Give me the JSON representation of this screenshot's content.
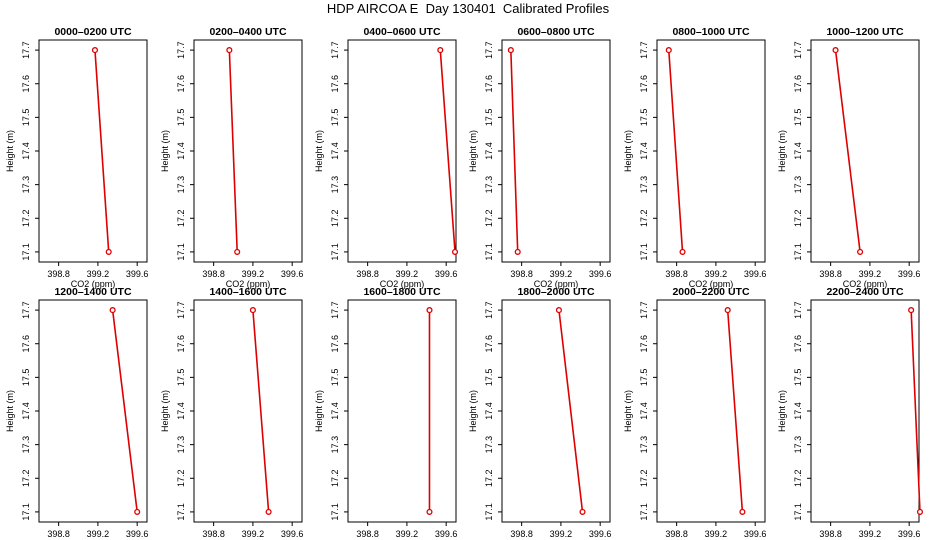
{
  "title": "HDP AIRCOA E  Day 130401  Calibrated Profiles",
  "colors": {
    "series": "#dd0000",
    "axis": "#000000",
    "text": "#000000"
  },
  "chart_data": [
    {
      "type": "line",
      "title": "0000–0200 UTC",
      "xlabel": "CO2 (ppm)",
      "ylabel": "Height (m)",
      "xlim": [
        398.6,
        399.7
      ],
      "ylim": [
        17.07,
        17.73
      ],
      "xticks": [
        "398.8",
        "399.2",
        "399.6"
      ],
      "yticks": [
        "17.1",
        "17.2",
        "17.3",
        "17.4",
        "17.5",
        "17.6",
        "17.7"
      ],
      "x": [
        399.17,
        399.31
      ],
      "y": [
        17.7,
        17.1
      ]
    },
    {
      "type": "line",
      "title": "0200–0400 UTC",
      "xlabel": "CO2 (ppm)",
      "ylabel": "Height (m)",
      "xlim": [
        398.6,
        399.7
      ],
      "ylim": [
        17.07,
        17.73
      ],
      "xticks": [
        "398.8",
        "399.2",
        "399.6"
      ],
      "yticks": [
        "17.1",
        "17.2",
        "17.3",
        "17.4",
        "17.5",
        "17.6",
        "17.7"
      ],
      "x": [
        398.96,
        399.04
      ],
      "y": [
        17.7,
        17.1
      ]
    },
    {
      "type": "line",
      "title": "0400–0600 UTC",
      "xlabel": "CO2 (ppm)",
      "ylabel": "Height (m)",
      "xlim": [
        398.6,
        399.7
      ],
      "ylim": [
        17.07,
        17.73
      ],
      "xticks": [
        "398.8",
        "399.2",
        "399.6"
      ],
      "yticks": [
        "17.1",
        "17.2",
        "17.3",
        "17.4",
        "17.5",
        "17.6",
        "17.7"
      ],
      "x": [
        399.54,
        399.69
      ],
      "y": [
        17.7,
        17.1
      ]
    },
    {
      "type": "line",
      "title": "0600–0800 UTC",
      "xlabel": "CO2 (ppm)",
      "ylabel": "Height (m)",
      "xlim": [
        398.6,
        399.7
      ],
      "ylim": [
        17.07,
        17.73
      ],
      "xticks": [
        "398.8",
        "399.2",
        "399.6"
      ],
      "yticks": [
        "17.1",
        "17.2",
        "17.3",
        "17.4",
        "17.5",
        "17.6",
        "17.7"
      ],
      "x": [
        398.69,
        398.76
      ],
      "y": [
        17.7,
        17.1
      ]
    },
    {
      "type": "line",
      "title": "0800–1000 UTC",
      "xlabel": "CO2 (ppm)",
      "ylabel": "Height (m)",
      "xlim": [
        398.6,
        399.7
      ],
      "ylim": [
        17.07,
        17.73
      ],
      "xticks": [
        "398.8",
        "399.2",
        "399.6"
      ],
      "yticks": [
        "17.1",
        "17.2",
        "17.3",
        "17.4",
        "17.5",
        "17.6",
        "17.7"
      ],
      "x": [
        398.72,
        398.86
      ],
      "y": [
        17.7,
        17.1
      ]
    },
    {
      "type": "line",
      "title": "1000–1200 UTC",
      "xlabel": "CO2 (ppm)",
      "ylabel": "Height (m)",
      "xlim": [
        398.6,
        399.7
      ],
      "ylim": [
        17.07,
        17.73
      ],
      "xticks": [
        "398.8",
        "399.2",
        "399.6"
      ],
      "yticks": [
        "17.1",
        "17.2",
        "17.3",
        "17.4",
        "17.5",
        "17.6",
        "17.7"
      ],
      "x": [
        398.85,
        399.1
      ],
      "y": [
        17.7,
        17.1
      ]
    },
    {
      "type": "line",
      "title": "1200–1400 UTC",
      "xlabel": "CO2 (ppm)",
      "ylabel": "Height (m)",
      "xlim": [
        398.6,
        399.7
      ],
      "ylim": [
        17.07,
        17.73
      ],
      "xticks": [
        "398.8",
        "399.2",
        "399.6"
      ],
      "yticks": [
        "17.1",
        "17.2",
        "17.3",
        "17.4",
        "17.5",
        "17.6",
        "17.7"
      ],
      "x": [
        399.35,
        399.6
      ],
      "y": [
        17.7,
        17.1
      ]
    },
    {
      "type": "line",
      "title": "1400–1600 UTC",
      "xlabel": "CO2 (ppm)",
      "ylabel": "Height (m)",
      "xlim": [
        398.6,
        399.7
      ],
      "ylim": [
        17.07,
        17.73
      ],
      "xticks": [
        "398.8",
        "399.2",
        "399.6"
      ],
      "yticks": [
        "17.1",
        "17.2",
        "17.3",
        "17.4",
        "17.5",
        "17.6",
        "17.7"
      ],
      "x": [
        399.2,
        399.36
      ],
      "y": [
        17.7,
        17.1
      ]
    },
    {
      "type": "line",
      "title": "1600–1800 UTC",
      "xlabel": "CO2 (ppm)",
      "ylabel": "Height (m)",
      "xlim": [
        398.6,
        399.7
      ],
      "ylim": [
        17.07,
        17.73
      ],
      "xticks": [
        "398.8",
        "399.2",
        "399.6"
      ],
      "yticks": [
        "17.1",
        "17.2",
        "17.3",
        "17.4",
        "17.5",
        "17.6",
        "17.7"
      ],
      "x": [
        399.43,
        399.43
      ],
      "y": [
        17.7,
        17.1
      ]
    },
    {
      "type": "line",
      "title": "1800–2000 UTC",
      "xlabel": "CO2 (ppm)",
      "ylabel": "Height (m)",
      "xlim": [
        398.6,
        399.7
      ],
      "ylim": [
        17.07,
        17.73
      ],
      "xticks": [
        "398.8",
        "399.2",
        "399.6"
      ],
      "yticks": [
        "17.1",
        "17.2",
        "17.3",
        "17.4",
        "17.5",
        "17.6",
        "17.7"
      ],
      "x": [
        399.18,
        399.42
      ],
      "y": [
        17.7,
        17.1
      ]
    },
    {
      "type": "line",
      "title": "2000–2200 UTC",
      "xlabel": "CO2 (ppm)",
      "ylabel": "Height (m)",
      "xlim": [
        398.6,
        399.7
      ],
      "ylim": [
        17.07,
        17.73
      ],
      "xticks": [
        "398.8",
        "399.2",
        "399.6"
      ],
      "yticks": [
        "17.1",
        "17.2",
        "17.3",
        "17.4",
        "17.5",
        "17.6",
        "17.7"
      ],
      "x": [
        399.32,
        399.47
      ],
      "y": [
        17.7,
        17.1
      ]
    },
    {
      "type": "line",
      "title": "2200–2400 UTC",
      "xlabel": "CO2 (ppm)",
      "ylabel": "Height (m)",
      "xlim": [
        398.6,
        399.7
      ],
      "ylim": [
        17.07,
        17.73
      ],
      "xticks": [
        "398.8",
        "399.2",
        "399.6"
      ],
      "yticks": [
        "17.1",
        "17.2",
        "17.3",
        "17.4",
        "17.5",
        "17.6",
        "17.7"
      ],
      "x": [
        399.62,
        399.71
      ],
      "y": [
        17.7,
        17.1
      ]
    }
  ]
}
